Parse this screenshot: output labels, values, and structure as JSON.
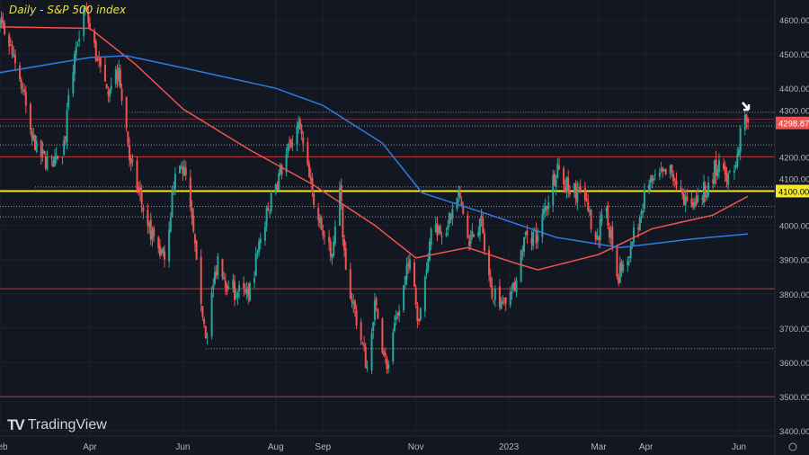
{
  "chart_data": {
    "type": "candlestick",
    "title": "Daily - S&P 500 index",
    "ylim": [
      3380,
      4660
    ],
    "yticks": [
      4600,
      4500,
      4400,
      4300,
      4200,
      4100,
      4000,
      3900,
      3800,
      3700,
      3600,
      3500,
      3400
    ],
    "xticks": [
      {
        "label": "Feb",
        "date": "2022-02-01"
      },
      {
        "label": "Apr",
        "date": "2022-04-01"
      },
      {
        "label": "Jun",
        "date": "2022-06-01"
      },
      {
        "label": "Aug",
        "date": "2022-08-01"
      },
      {
        "label": "Sep",
        "date": "2022-09-01"
      },
      {
        "label": "Nov",
        "date": "2022-11-01"
      },
      {
        "label": "2023",
        "date": "2023-01-01"
      },
      {
        "label": "Mar",
        "date": "2023-03-01"
      },
      {
        "label": "Apr",
        "date": "2023-04-01"
      },
      {
        "label": "Jun",
        "date": "2023-06-01"
      }
    ],
    "closes": [
      [
        "2022-01-24",
        4450
      ],
      [
        "2022-02-02",
        4590
      ],
      [
        "2022-02-10",
        4500
      ],
      [
        "2022-02-18",
        4350
      ],
      [
        "2022-02-24",
        4220
      ],
      [
        "2022-03-08",
        4170
      ],
      [
        "2022-03-14",
        4200
      ],
      [
        "2022-03-22",
        4500
      ],
      [
        "2022-03-29",
        4630
      ],
      [
        "2022-04-06",
        4480
      ],
      [
        "2022-04-12",
        4400
      ],
      [
        "2022-04-20",
        4460
      ],
      [
        "2022-04-28",
        4180
      ],
      [
        "2022-05-09",
        4000
      ],
      [
        "2022-05-20",
        3900
      ],
      [
        "2022-05-27",
        4150
      ],
      [
        "2022-06-02",
        4170
      ],
      [
        "2022-06-10",
        3900
      ],
      [
        "2022-06-16",
        3670
      ],
      [
        "2022-06-24",
        3910
      ],
      [
        "2022-07-01",
        3820
      ],
      [
        "2022-07-14",
        3790
      ],
      [
        "2022-07-22",
        3960
      ],
      [
        "2022-08-01",
        4120
      ],
      [
        "2022-08-16",
        4300
      ],
      [
        "2022-08-26",
        4060
      ],
      [
        "2022-09-06",
        3910
      ],
      [
        "2022-09-12",
        4110
      ],
      [
        "2022-09-16",
        3870
      ],
      [
        "2022-09-30",
        3585
      ],
      [
        "2022-10-05",
        3780
      ],
      [
        "2022-10-13",
        3580
      ],
      [
        "2022-10-21",
        3750
      ],
      [
        "2022-10-28",
        3900
      ],
      [
        "2022-11-03",
        3720
      ],
      [
        "2022-11-11",
        3990
      ],
      [
        "2022-11-22",
        4000
      ],
      [
        "2022-11-30",
        4080
      ],
      [
        "2022-12-06",
        3940
      ],
      [
        "2022-12-13",
        4020
      ],
      [
        "2022-12-20",
        3820
      ],
      [
        "2022-12-28",
        3780
      ],
      [
        "2023-01-05",
        3810
      ],
      [
        "2023-01-12",
        3980
      ],
      [
        "2023-01-20",
        3970
      ],
      [
        "2023-02-02",
        4180
      ],
      [
        "2023-02-10",
        4090
      ],
      [
        "2023-02-16",
        4110
      ],
      [
        "2023-02-28",
        3970
      ],
      [
        "2023-03-06",
        4050
      ],
      [
        "2023-03-13",
        3850
      ],
      [
        "2023-03-22",
        3940
      ],
      [
        "2023-04-03",
        4120
      ],
      [
        "2023-04-18",
        4155
      ],
      [
        "2023-04-26",
        4060
      ],
      [
        "2023-05-04",
        4060
      ],
      [
        "2023-05-12",
        4125
      ],
      [
        "2023-05-19",
        4190
      ],
      [
        "2023-05-25",
        4150
      ],
      [
        "2023-06-01",
        4220
      ],
      [
        "2023-06-02",
        4285
      ],
      [
        "2023-06-07",
        4298.87
      ]
    ],
    "moving_averages": [
      {
        "color": "#f0534f",
        "points": [
          [
            "2022-01-24",
            4580
          ],
          [
            "2022-04-01",
            4575
          ],
          [
            "2022-05-01",
            4470
          ],
          [
            "2022-06-01",
            4340
          ],
          [
            "2022-07-15",
            4220
          ],
          [
            "2022-08-25",
            4120
          ],
          [
            "2022-10-05",
            4000
          ],
          [
            "2022-11-01",
            3905
          ],
          [
            "2022-12-05",
            3935
          ],
          [
            "2023-01-05",
            3890
          ],
          [
            "2023-01-20",
            3870
          ],
          [
            "2023-03-01",
            3915
          ],
          [
            "2023-04-05",
            3990
          ],
          [
            "2023-05-15",
            4030
          ],
          [
            "2023-06-07",
            4085
          ]
        ]
      },
      {
        "color": "#2e7be6",
        "points": [
          [
            "2022-01-24",
            4440
          ],
          [
            "2022-04-01",
            4490
          ],
          [
            "2022-04-25",
            4495
          ],
          [
            "2022-06-01",
            4460
          ],
          [
            "2022-08-01",
            4400
          ],
          [
            "2022-09-01",
            4350
          ],
          [
            "2022-10-10",
            4240
          ],
          [
            "2022-11-05",
            4095
          ],
          [
            "2022-12-20",
            4030
          ],
          [
            "2023-02-01",
            3965
          ],
          [
            "2023-03-15",
            3935
          ],
          [
            "2023-05-01",
            3960
          ],
          [
            "2023-06-07",
            3975
          ]
        ]
      }
    ],
    "levels": [
      {
        "price": 4100,
        "style": "yellow-solid",
        "label": "4100.00"
      },
      {
        "price": 4200,
        "style": "red-solid"
      },
      {
        "price": 3815,
        "style": "red-solid"
      },
      {
        "price": 3500,
        "style": "red-solid"
      },
      {
        "price": 4310,
        "style": "red-faint"
      },
      {
        "price": 4330,
        "style": "dotted",
        "from": "2022-04-25"
      },
      {
        "price": 4290,
        "style": "dotted"
      },
      {
        "price": 4235,
        "style": "dotted"
      },
      {
        "price": 4112,
        "style": "dotted",
        "from": "2022-02-24"
      },
      {
        "price": 4055,
        "style": "dotted"
      },
      {
        "price": 4025,
        "style": "dotted"
      },
      {
        "price": 3640,
        "style": "dotted",
        "from": "2022-06-16"
      }
    ],
    "last_price": {
      "value": "4298.87",
      "color": "#f0534f"
    },
    "colors": {
      "up": "#26a69a",
      "down": "#ef5350",
      "background": "#131722",
      "highlight": "#f5e72a"
    }
  },
  "branding": {
    "name": "TradingView"
  }
}
